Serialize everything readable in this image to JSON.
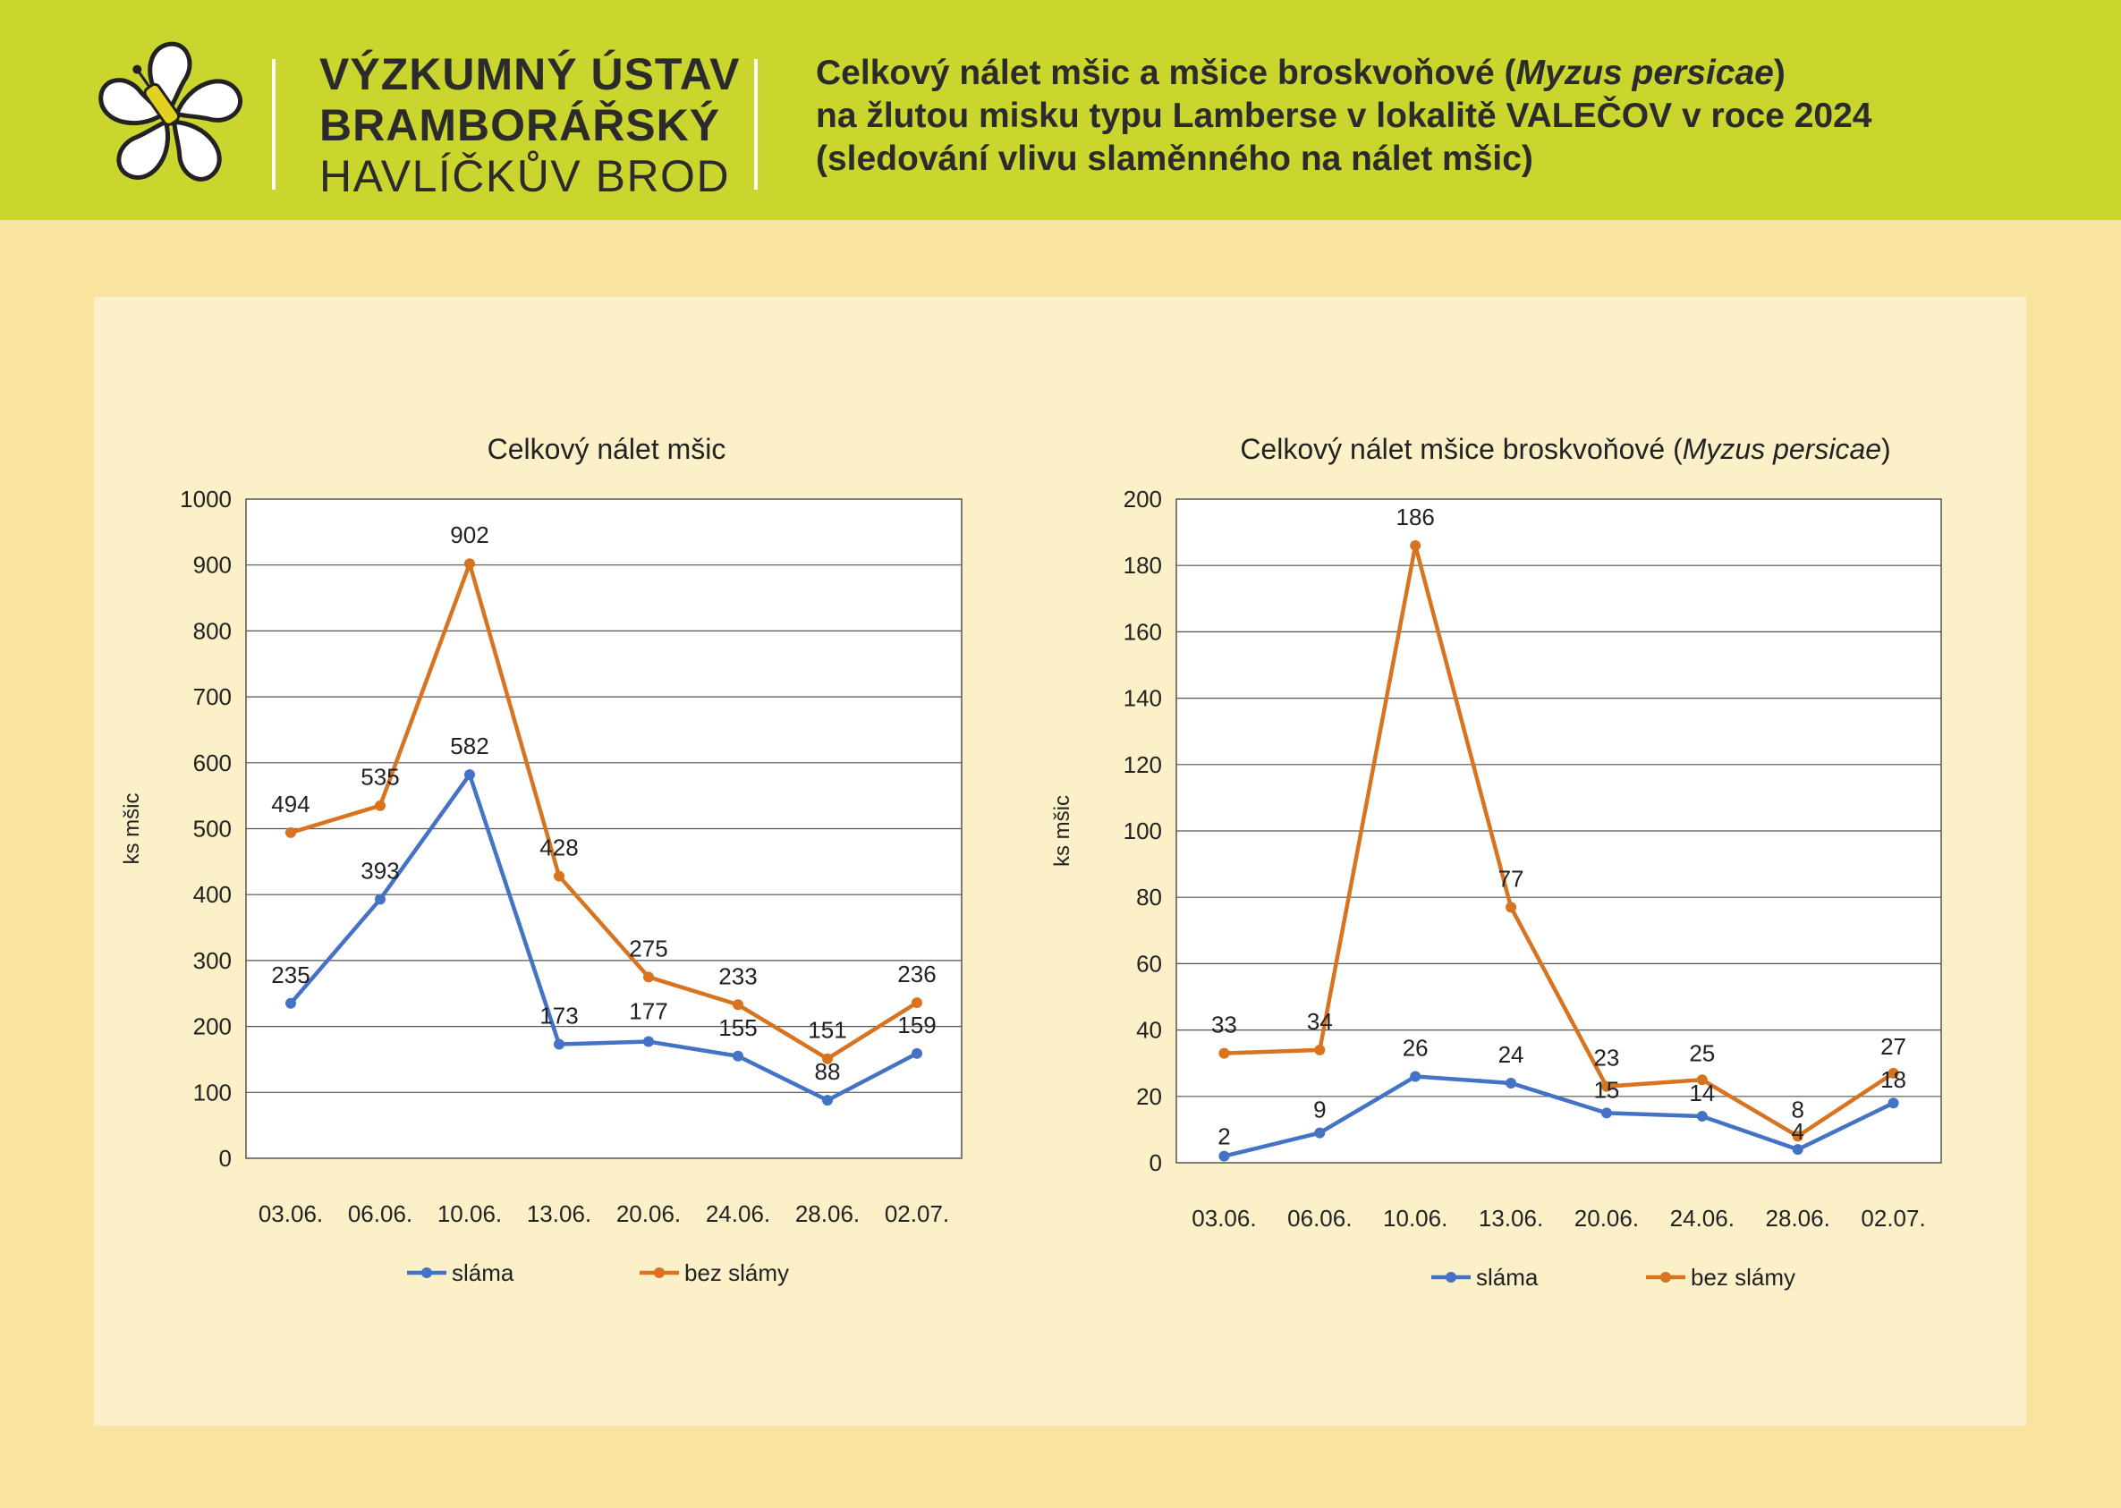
{
  "header": {
    "institute_line1": "VÝZKUMNÝ ÚSTAV",
    "institute_line2": "BRAMBORÁŘSKÝ",
    "institute_line3": "HAVLÍČKŮV BROD",
    "title_line1_pre": "Celkový nálet mšic a mšice broskvoňové (",
    "title_line1_italic": "Myzus persicae",
    "title_line1_post": ")",
    "title_line2": "na žlutou misku typu Lamberse v lokalitě VALEČOV v roce 2024",
    "title_line3": "(sledování vlivu slaměnného na nálet mšic)"
  },
  "colors": {
    "header_bg": "#cad52e",
    "page_bg": "#f8e49e",
    "panel_bg": "#fbf0c8",
    "series_slama": "#4472c4",
    "series_bez_slamy": "#d8731f"
  },
  "chart_data": [
    {
      "type": "line",
      "title": "Celkový nálet mšic",
      "title_italic": "",
      "title_post": "",
      "ylabel": "ks mšic",
      "xlabel": "",
      "ylim": [
        0,
        1000
      ],
      "ytick_step": 100,
      "yticks": [
        "0",
        "100",
        "200",
        "300",
        "400",
        "500",
        "600",
        "700",
        "800",
        "900",
        "1000"
      ],
      "categories": [
        "03.06.",
        "06.06.",
        "10.06.",
        "13.06.",
        "20.06.",
        "24.06.",
        "28.06.",
        "02.07."
      ],
      "series": [
        {
          "name": "sláma",
          "values": [
            235,
            393,
            582,
            173,
            177,
            155,
            88,
            159
          ]
        },
        {
          "name": "bez slámy",
          "values": [
            494,
            535,
            902,
            428,
            275,
            233,
            151,
            236
          ]
        }
      ],
      "grid": true,
      "legend": "bottom"
    },
    {
      "type": "line",
      "title": "Celkový nálet mšice broskvoňové (",
      "title_italic": "Myzus persicae",
      "title_post": ")",
      "ylabel": "ks mšic",
      "xlabel": "",
      "ylim": [
        0,
        200
      ],
      "ytick_step": 20,
      "yticks": [
        "0",
        "20",
        "40",
        "60",
        "80",
        "100",
        "120",
        "140",
        "160",
        "180",
        "200"
      ],
      "categories": [
        "03.06.",
        "06.06.",
        "10.06.",
        "13.06.",
        "20.06.",
        "24.06.",
        "28.06.",
        "02.07."
      ],
      "series": [
        {
          "name": "sláma",
          "values": [
            2,
            9,
            26,
            24,
            15,
            14,
            4,
            18
          ]
        },
        {
          "name": "bez slámy",
          "values": [
            33,
            34,
            186,
            77,
            23,
            25,
            8,
            27
          ]
        }
      ],
      "grid": true,
      "legend": "bottom"
    }
  ]
}
